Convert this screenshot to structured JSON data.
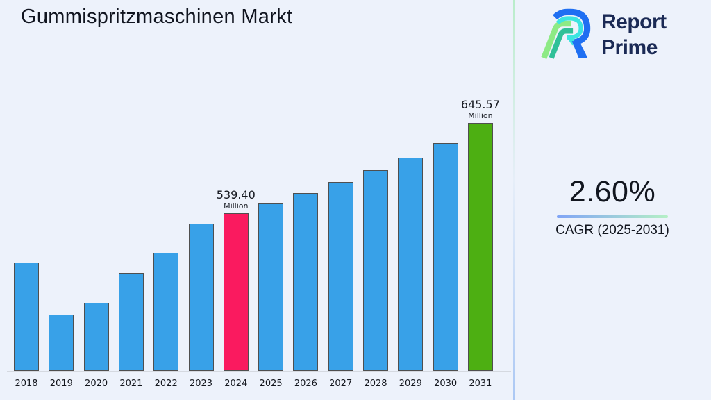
{
  "header": {
    "title": "Gummispritzmaschinen Markt"
  },
  "logo": {
    "line1": "Report",
    "line2": "Prime",
    "navy": "#1b2a55",
    "icon_blue": "#1f6ff2",
    "icon_cyan": "#3ce5e0",
    "icon_light_green": "#8dea85",
    "icon_teal": "#2fc098"
  },
  "cagr": {
    "value": "2.60%",
    "label": "CAGR (2025-2031)"
  },
  "chart_data": {
    "type": "bar",
    "title": "Gummispritzmaschinen Markt",
    "xlabel": "",
    "ylabel": "",
    "unit": "Million",
    "grid": false,
    "legend": "none",
    "categories": [
      "2018",
      "2019",
      "2020",
      "2021",
      "2022",
      "2023",
      "2024",
      "2025",
      "2026",
      "2027",
      "2028",
      "2029",
      "2030",
      "2031"
    ],
    "values": [
      481,
      420,
      434,
      469,
      493,
      527,
      539.4,
      551,
      563,
      576,
      590,
      605,
      622,
      645.57
    ],
    "ylim": [
      355,
      650
    ],
    "annotations": [
      {
        "category": "2024",
        "value_label": "539.40",
        "unit_label": "Million"
      },
      {
        "category": "2031",
        "value_label": "645.57",
        "unit_label": "Million"
      }
    ],
    "colors": {
      "default": "#38a1e8",
      "highlights": {
        "2024": "#fa1a5f",
        "2031": "#4daf12"
      },
      "bar_border": "#4f4f4f",
      "background": "#edf2fb",
      "axis_line": "#d5d9e0"
    }
  }
}
